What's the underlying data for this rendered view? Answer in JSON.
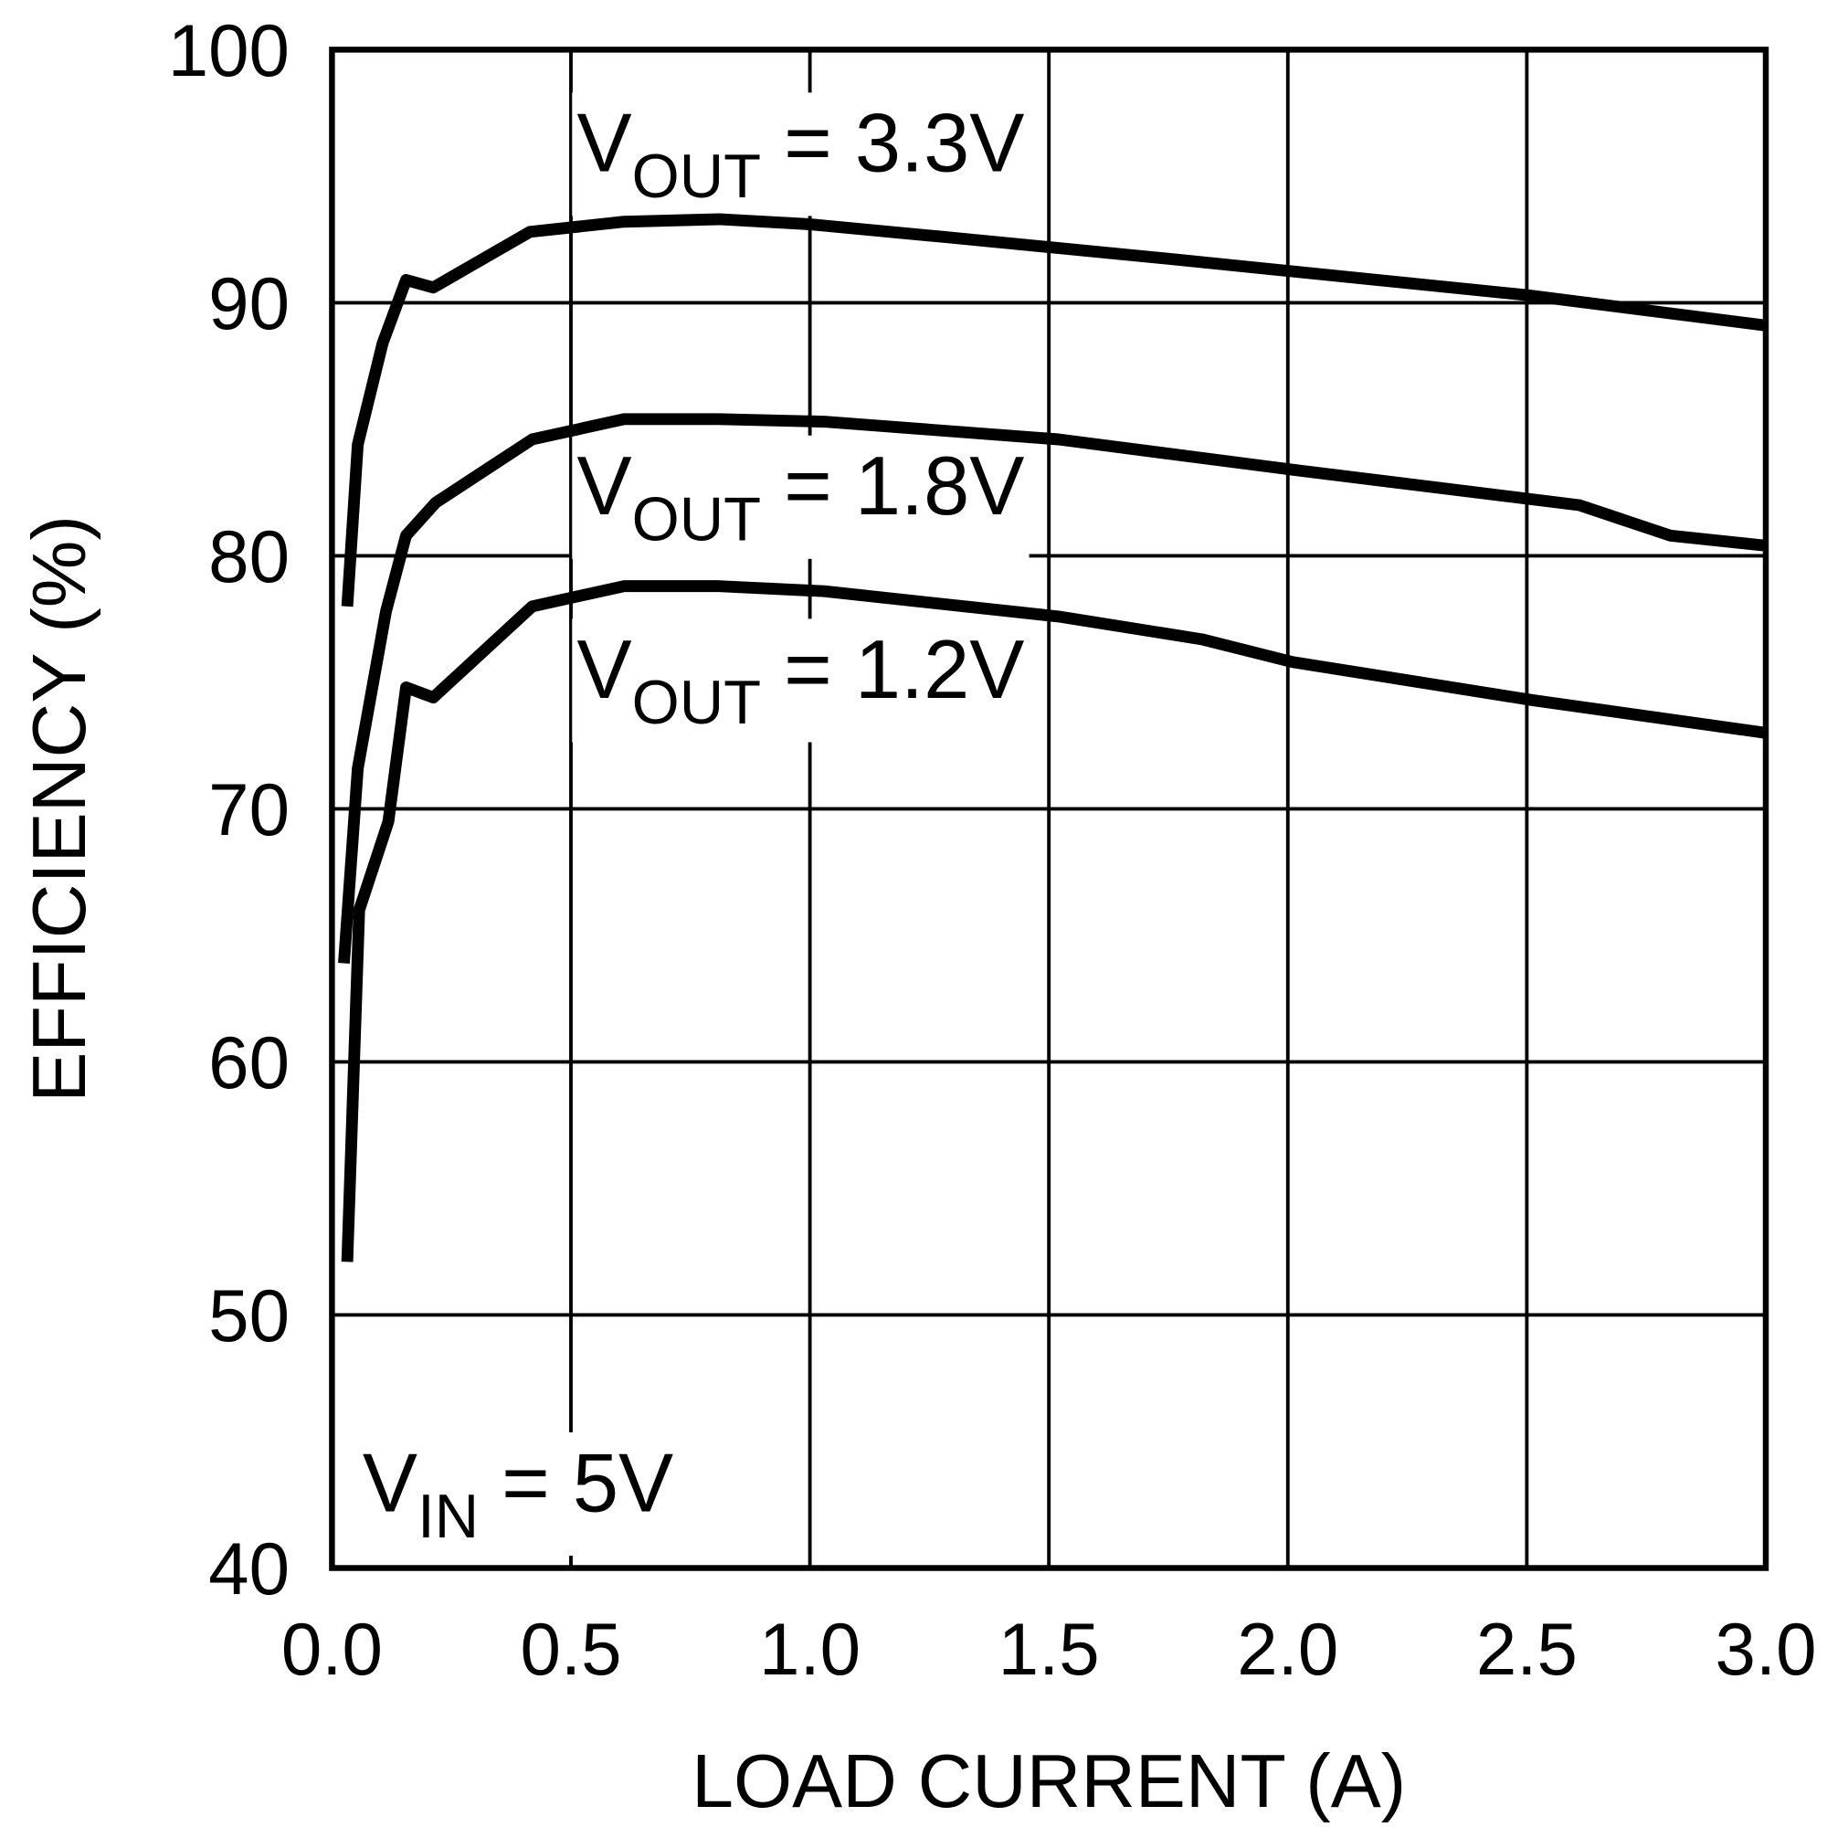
{
  "chart_data": {
    "type": "line",
    "xlabel": "LOAD CURRENT (A)",
    "ylabel": "EFFICIENCY (%)",
    "xlim": [
      0,
      3
    ],
    "ylim": [
      40,
      100
    ],
    "xticks": [
      {
        "value": 0,
        "label": "0.0"
      },
      {
        "value": 0.5,
        "label": "0.5"
      },
      {
        "value": 1,
        "label": "1.0"
      },
      {
        "value": 1.5,
        "label": "1.5"
      },
      {
        "value": 2,
        "label": "2.0"
      },
      {
        "value": 2.5,
        "label": "2.5"
      },
      {
        "value": 3,
        "label": "3.0"
      }
    ],
    "yticks": [
      40,
      50,
      60,
      70,
      80,
      90,
      100
    ],
    "grid": true,
    "series": [
      {
        "color": "#000000",
        "x": [
          0.032,
          0.054,
          0.106,
          0.155,
          0.212,
          0.414,
          0.611,
          0.81,
          1.0,
          1.28,
          1.77,
          2.5,
          3.0
        ],
        "values": [
          78.0,
          84.4,
          88.4,
          90.9,
          90.6,
          92.8,
          93.2,
          93.3,
          93.1,
          92.6,
          91.7,
          90.3,
          89.1
        ]
      },
      {
        "color": "#000000",
        "x": [
          0.025,
          0.054,
          0.113,
          0.155,
          0.217,
          0.419,
          0.611,
          0.81,
          1.03,
          1.52,
          2.01,
          2.61,
          2.8,
          3.0
        ],
        "values": [
          63.9,
          71.6,
          77.8,
          80.8,
          82.1,
          84.6,
          85.4,
          85.4,
          85.3,
          84.6,
          83.4,
          82.0,
          80.8,
          80.4
        ]
      },
      {
        "color": "#000000",
        "x": [
          0.032,
          0.057,
          0.118,
          0.155,
          0.212,
          0.419,
          0.611,
          0.81,
          1.03,
          1.52,
          1.82,
          2.01,
          2.51,
          3.0
        ],
        "values": [
          52.1,
          66.0,
          69.5,
          74.8,
          74.4,
          78.0,
          78.8,
          78.8,
          78.6,
          77.6,
          76.7,
          75.8,
          74.3,
          73.0
        ]
      }
    ],
    "annotations": [
      {
        "text": "V",
        "sub": "OUT",
        "rest": " = 3.3V"
      },
      {
        "text": "V",
        "sub": "OUT",
        "rest": " = 1.8V"
      },
      {
        "text": "V",
        "sub": "OUT",
        "rest": " = 1.2V"
      },
      {
        "text": "V",
        "sub": "IN",
        "rest": " = 5V"
      }
    ]
  }
}
